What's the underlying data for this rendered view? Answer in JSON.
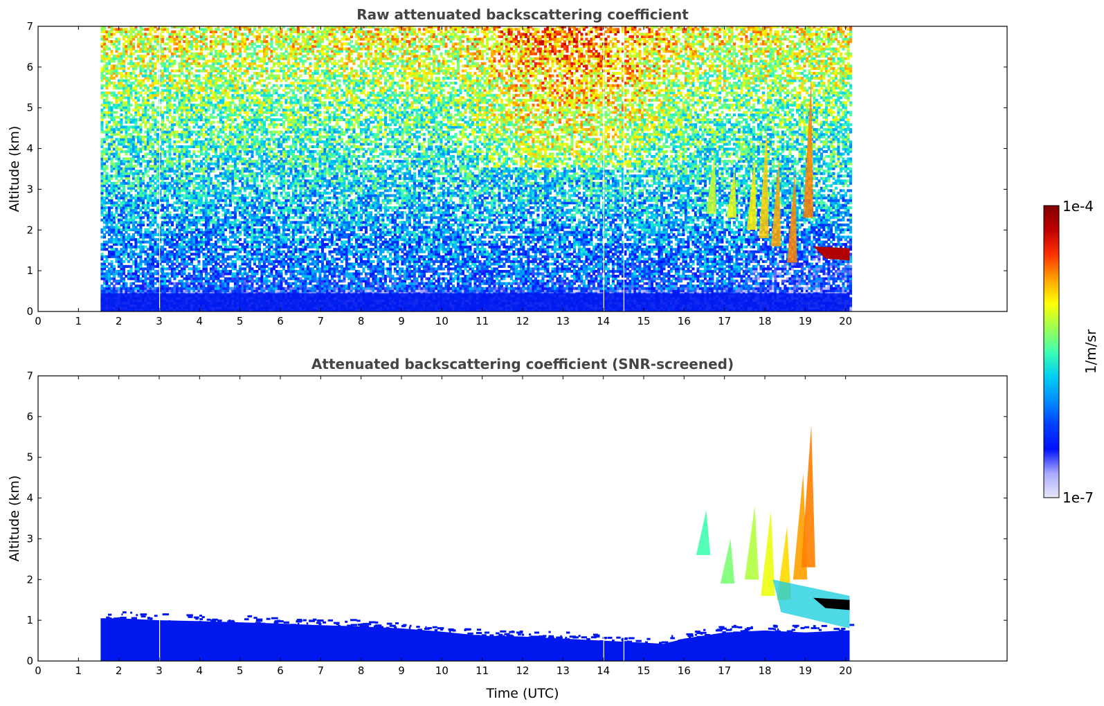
{
  "chart_data": [
    {
      "type": "heatmap",
      "title": "Raw attenuated backscattering coefficient",
      "ylabel": "Altitude (km)",
      "xlabel": "",
      "xlim": [
        0,
        24
      ],
      "ylim": [
        0,
        7
      ],
      "xticks": [
        0,
        1,
        2,
        3,
        4,
        5,
        6,
        7,
        8,
        9,
        10,
        11,
        12,
        13,
        14,
        15,
        16,
        17,
        18,
        19,
        20
      ],
      "yticks": [
        0,
        1,
        2,
        3,
        4,
        5,
        6,
        7
      ],
      "data_time_range": [
        1.55,
        20.1
      ],
      "gaps_utc": [
        3.0,
        14.0,
        14.5
      ],
      "features": {
        "surface_aerosol_top_km": 0.5,
        "elevated_signal_region_utc": [
          10.3,
          16.2
        ],
        "virga_streaks_utc": [
          16.5,
          19.5
        ],
        "cloud_layer_base_km": 1.3,
        "cloud_layer_utc": [
          19.2,
          20.1
        ],
        "high_streak_top_km": 5.8
      }
    },
    {
      "type": "heatmap",
      "title": "Attenuated backscattering coefficient (SNR-screened)",
      "ylabel": "Altitude (km)",
      "xlabel": "Time (UTC)",
      "xlim": [
        0,
        24
      ],
      "ylim": [
        0,
        7
      ],
      "xticks": [
        0,
        1,
        2,
        3,
        4,
        5,
        6,
        7,
        8,
        9,
        10,
        11,
        12,
        13,
        14,
        15,
        16,
        17,
        18,
        19,
        20
      ],
      "yticks": [
        0,
        1,
        2,
        3,
        4,
        5,
        6,
        7
      ],
      "data_time_range": [
        1.55,
        20.1
      ],
      "gaps_utc": [
        3.0,
        14.0,
        14.5
      ],
      "boundary_layer_top": {
        "time": [
          1.55,
          2,
          3,
          4,
          5,
          6,
          7,
          8,
          9,
          10,
          11,
          12,
          13,
          14,
          15,
          15.5,
          16,
          17,
          18,
          19,
          20,
          20.1
        ],
        "height_km": [
          1.05,
          1.05,
          1.0,
          0.98,
          0.95,
          0.92,
          0.88,
          0.85,
          0.8,
          0.72,
          0.62,
          0.6,
          0.55,
          0.5,
          0.45,
          0.42,
          0.55,
          0.7,
          0.75,
          0.7,
          0.75,
          0.75
        ]
      },
      "cloud_layer_base_km": 1.3,
      "virga_streaks_utc": [
        16.3,
        19.5
      ]
    }
  ],
  "colorbar": {
    "label": "1/m/sr",
    "max_label": "1e-4",
    "min_label": "1e-7",
    "scale": "log",
    "colormap": "jet",
    "stops": [
      "#e8e8f8",
      "#a8a8ff",
      "#0010ff",
      "#0040ff",
      "#0090ff",
      "#00d0f0",
      "#40ffb0",
      "#a0ff50",
      "#ffff00",
      "#ffa000",
      "#ff3000",
      "#c00000",
      "#800000"
    ]
  },
  "colors": {
    "low_signal": "#0018ee",
    "cloud": "#b00000",
    "saturated": "#000000",
    "title": "#444444"
  }
}
